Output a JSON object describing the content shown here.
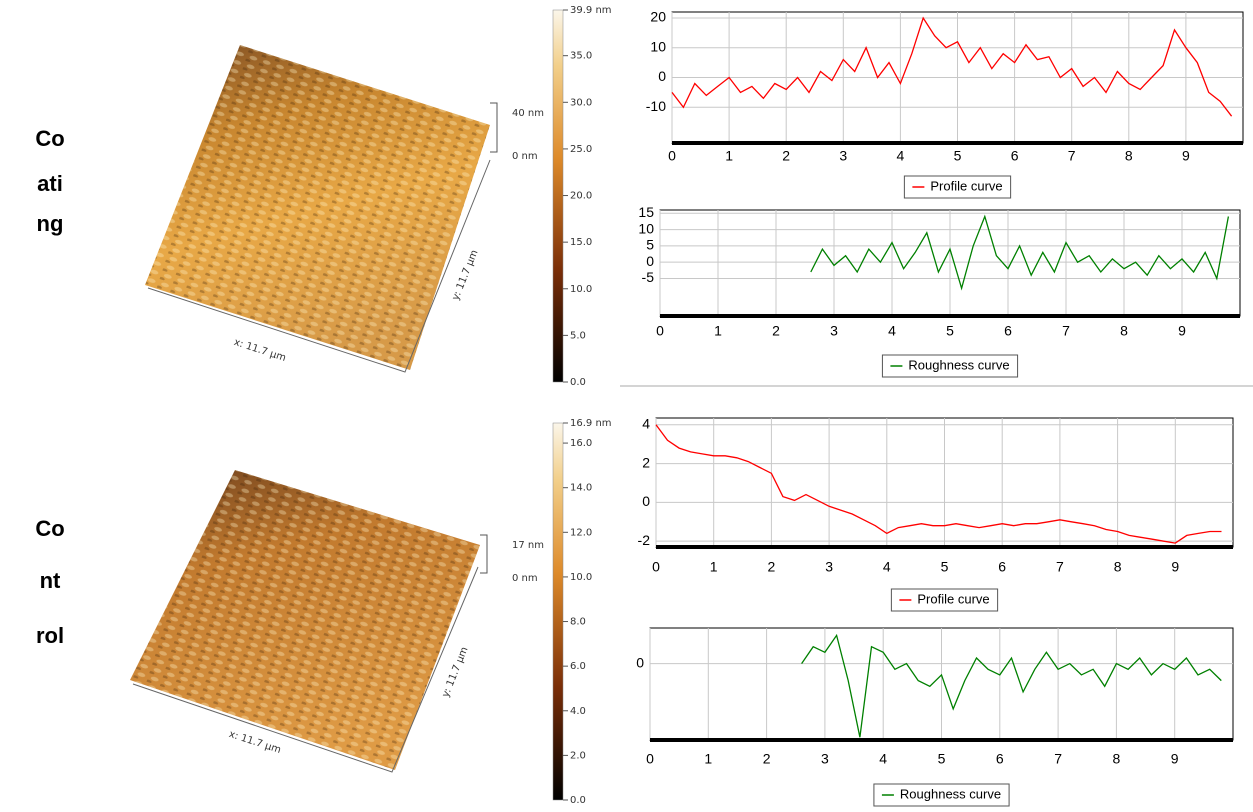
{
  "rows": [
    {
      "label_lines": [
        "Co",
        "ati",
        "ng"
      ],
      "afm": {
        "x_label": "x: 11.7 µm",
        "y_label": "y: 11.7 µm",
        "height_ticks": [
          "40 nm",
          "0 nm"
        ],
        "colorbar": {
          "lim": [
            0,
            39.9
          ],
          "ticks": [
            {
              "value": 0,
              "label": "0.0"
            },
            {
              "value": 5,
              "label": "5.0"
            },
            {
              "value": 10,
              "label": "10.0"
            },
            {
              "value": 15,
              "label": "15.0"
            },
            {
              "value": 20,
              "label": "20.0"
            },
            {
              "value": 25,
              "label": "25.0"
            },
            {
              "value": 30,
              "label": "30.0"
            },
            {
              "value": 35,
              "label": "35.0"
            },
            {
              "value": 39.9,
              "label": "39.9 nm"
            }
          ]
        }
      }
    },
    {
      "label_lines": [
        "Co",
        "nt",
        "rol"
      ],
      "afm": {
        "x_label": "x: 11.7 µm",
        "y_label": "y: 11.7 µm",
        "height_ticks": [
          "17 nm",
          "0 nm"
        ],
        "colorbar": {
          "lim": [
            0,
            16.9
          ],
          "ticks": [
            {
              "value": 0,
              "label": "0.0"
            },
            {
              "value": 2,
              "label": "2.0"
            },
            {
              "value": 4,
              "label": "4.0"
            },
            {
              "value": 6,
              "label": "6.0"
            },
            {
              "value": 8,
              "label": "8.0"
            },
            {
              "value": 10,
              "label": "10.0"
            },
            {
              "value": 12,
              "label": "12.0"
            },
            {
              "value": 14,
              "label": "14.0"
            },
            {
              "value": 16,
              "label": "16.0"
            },
            {
              "value": 16.9,
              "label": "16.9 nm"
            }
          ]
        }
      }
    }
  ],
  "chart_data": [
    {
      "type": "line",
      "x": [
        0,
        0.2,
        0.4,
        0.6,
        0.8,
        1,
        1.2,
        1.4,
        1.6,
        1.8,
        2,
        2.2,
        2.4,
        2.6,
        2.8,
        3,
        3.2,
        3.4,
        3.6,
        3.8,
        4,
        4.2,
        4.4,
        4.6,
        4.8,
        5,
        5.2,
        5.4,
        5.6,
        5.8,
        6,
        6.2,
        6.4,
        6.6,
        6.8,
        7,
        7.2,
        7.4,
        7.6,
        7.8,
        8,
        8.2,
        8.4,
        8.6,
        8.8,
        9,
        9.2,
        9.4,
        9.6,
        9.8
      ],
      "series": [
        {
          "name": "Profile curve",
          "color": "#ff0000",
          "values": [
            -5,
            -10,
            -2,
            -6,
            -3,
            0,
            -5,
            -3,
            -7,
            -2,
            -4,
            0,
            -5,
            2,
            -1,
            6,
            2,
            10,
            0,
            5,
            -2,
            8,
            20,
            14,
            10,
            12,
            5,
            10,
            3,
            8,
            5,
            11,
            6,
            7,
            0,
            3,
            -3,
            0,
            -5,
            2,
            -2,
            -4,
            0,
            4,
            16,
            10,
            5,
            -5,
            -8,
            -13
          ]
        }
      ],
      "xlim": [
        0,
        10
      ],
      "ylim": [
        -22,
        22
      ],
      "xticks": [
        0,
        1,
        2,
        3,
        4,
        5,
        6,
        7,
        8,
        9
      ],
      "yticks": [
        -10,
        0,
        10,
        20
      ],
      "grid": true
    },
    {
      "type": "line",
      "x": [
        2.6,
        2.8,
        3,
        3.2,
        3.4,
        3.6,
        3.8,
        4,
        4.2,
        4.4,
        4.6,
        4.8,
        5,
        5.2,
        5.4,
        5.6,
        5.8,
        6,
        6.2,
        6.4,
        6.6,
        6.8,
        7,
        7.2,
        7.4,
        7.6,
        7.8,
        8,
        8.2,
        8.4,
        8.6,
        8.8,
        9,
        9.2,
        9.4,
        9.6,
        9.8
      ],
      "series": [
        {
          "name": "Roughness curve",
          "color": "#008000",
          "values": [
            -3,
            4,
            -1,
            2,
            -3,
            4,
            0,
            6,
            -2,
            3,
            9,
            -3,
            4,
            -8,
            5,
            14,
            2,
            -2,
            5,
            -4,
            3,
            -3,
            6,
            0,
            2,
            -3,
            1,
            -2,
            0,
            -4,
            2,
            -2,
            1,
            -3,
            3,
            -5,
            14
          ]
        }
      ],
      "xlim": [
        0,
        10
      ],
      "ylim": [
        -16.5,
        16
      ],
      "xticks": [
        0,
        1,
        2,
        3,
        4,
        5,
        6,
        7,
        8,
        9
      ],
      "yticks": [
        -5,
        0,
        5,
        10,
        15
      ],
      "grid": true
    },
    {
      "type": "line",
      "x": [
        0,
        0.2,
        0.4,
        0.6,
        0.8,
        1,
        1.2,
        1.4,
        1.6,
        1.8,
        2,
        2.2,
        2.4,
        2.6,
        2.8,
        3,
        3.2,
        3.4,
        3.6,
        3.8,
        4,
        4.2,
        4.4,
        4.6,
        4.8,
        5,
        5.2,
        5.4,
        5.6,
        5.8,
        6,
        6.2,
        6.4,
        6.6,
        6.8,
        7,
        7.2,
        7.4,
        7.6,
        7.8,
        8,
        8.2,
        8.4,
        8.6,
        8.8,
        9,
        9.2,
        9.4,
        9.6,
        9.8
      ],
      "series": [
        {
          "name": "Profile curve",
          "color": "#ff0000",
          "values": [
            4,
            3.2,
            2.8,
            2.6,
            2.5,
            2.4,
            2.4,
            2.3,
            2.1,
            1.8,
            1.5,
            0.3,
            0.1,
            0.4,
            0.1,
            -0.2,
            -0.4,
            -0.6,
            -0.9,
            -1.2,
            -1.6,
            -1.3,
            -1.2,
            -1.1,
            -1.2,
            -1.2,
            -1.1,
            -1.2,
            -1.3,
            -1.2,
            -1.1,
            -1.2,
            -1.1,
            -1.1,
            -1,
            -0.9,
            -1,
            -1.1,
            -1.2,
            -1.4,
            -1.5,
            -1.7,
            -1.8,
            -1.9,
            -2,
            -2.1,
            -1.7,
            -1.6,
            -1.5,
            -1.5
          ]
        }
      ],
      "xlim": [
        0,
        10
      ],
      "ylim": [
        -2.3,
        4.35
      ],
      "xticks": [
        0,
        1,
        2,
        3,
        4,
        5,
        6,
        7,
        8,
        9
      ],
      "yticks": [
        -2,
        0,
        2,
        4
      ],
      "grid": true
    },
    {
      "type": "line",
      "x": [
        2.6,
        2.8,
        3,
        3.2,
        3.4,
        3.6,
        3.8,
        4,
        4.2,
        4.4,
        4.6,
        4.8,
        5,
        5.2,
        5.4,
        5.6,
        5.8,
        6,
        6.2,
        6.4,
        6.6,
        6.8,
        7,
        7.2,
        7.4,
        7.6,
        7.8,
        8,
        8.2,
        8.4,
        8.6,
        8.8,
        9,
        9.2,
        9.4,
        9.6,
        9.8
      ],
      "series": [
        {
          "name": "Roughness curve",
          "color": "#008000",
          "values": [
            0,
            0.3,
            0.2,
            0.5,
            -0.3,
            -1.3,
            0.3,
            0.2,
            -0.1,
            0,
            -0.3,
            -0.4,
            -0.2,
            -0.8,
            -0.3,
            0.1,
            -0.1,
            -0.2,
            0.1,
            -0.5,
            -0.1,
            0.2,
            -0.1,
            0,
            -0.2,
            -0.1,
            -0.4,
            0,
            -0.1,
            0.1,
            -0.2,
            0,
            -0.1,
            0.1,
            -0.2,
            -0.1,
            -0.3
          ]
        }
      ],
      "xlim": [
        0,
        10
      ],
      "ylim": [
        -1.35,
        0.63
      ],
      "xticks": [
        0,
        1,
        2,
        3,
        4,
        5,
        6,
        7,
        8,
        9
      ],
      "yticks": [
        0
      ],
      "grid": true
    }
  ]
}
